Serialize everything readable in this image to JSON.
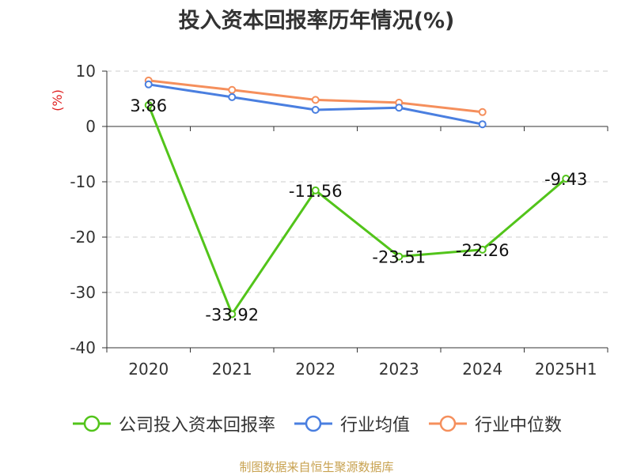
{
  "chart_data": {
    "type": "line",
    "title": "投入资本回报率历年情况(%)",
    "ylabel": "(%)",
    "categories": [
      "2020",
      "2021",
      "2022",
      "2023",
      "2024",
      "2025H1"
    ],
    "ylim": [
      -40,
      10
    ],
    "yticks": [
      10,
      0,
      -10,
      -20,
      -30,
      -40
    ],
    "grid": true,
    "legend_position": "bottom",
    "series": [
      {
        "name": "公司投入资本回报率",
        "color": "#52c41a",
        "values": [
          3.86,
          -33.92,
          -11.56,
          -23.51,
          -22.26,
          -9.43
        ],
        "labeled": true
      },
      {
        "name": "行业均值",
        "color": "#4a7fe0",
        "values": [
          7.6,
          5.3,
          3.0,
          3.4,
          0.4,
          null
        ],
        "labeled": false
      },
      {
        "name": "行业中位数",
        "color": "#f58f5c",
        "values": [
          8.3,
          6.6,
          4.8,
          4.3,
          2.6,
          null
        ],
        "labeled": false
      }
    ]
  },
  "source": "制图数据来自恒生聚源数据库"
}
